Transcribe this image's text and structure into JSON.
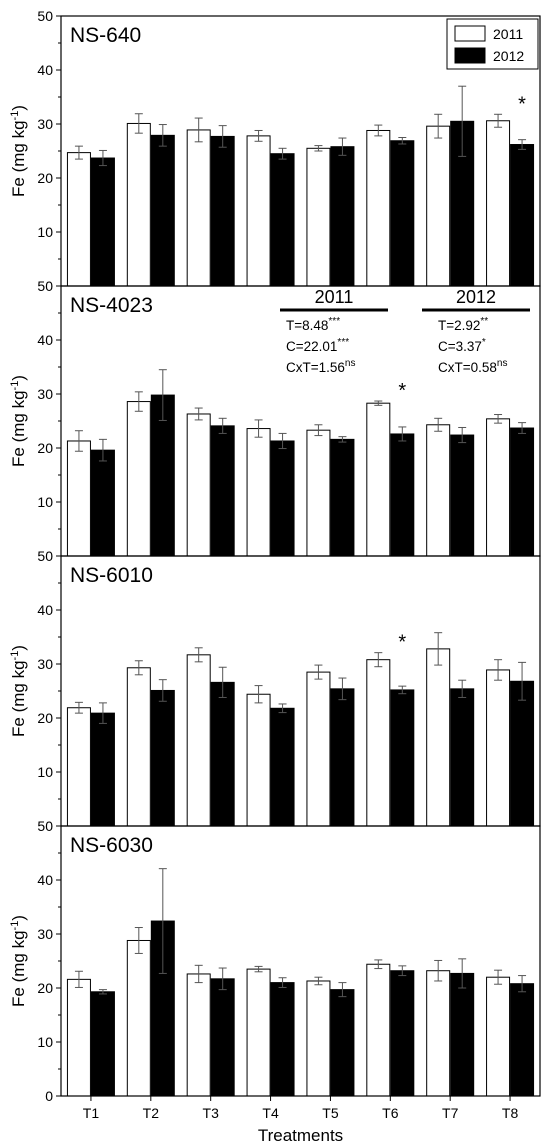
{
  "chart_data": {
    "type": "bar",
    "categories": [
      "T1",
      "T2",
      "T3",
      "T4",
      "T5",
      "T6",
      "T7",
      "T8"
    ],
    "xlabel": "Treatments",
    "ylabel": "Fe (mg kg",
    "ylabel_superscript": "-1",
    "ylabel_close": ")",
    "ylim": [
      0,
      50
    ],
    "yticks": [
      0,
      10,
      20,
      30,
      40,
      50
    ],
    "legend": {
      "position": "top-right",
      "entries": [
        {
          "label": "2011",
          "color": "#ffffff"
        },
        {
          "label": "2012",
          "color": "#000000"
        }
      ]
    },
    "panels": [
      {
        "title": "NS-640",
        "series": [
          {
            "name": "2011",
            "values": [
              24.7,
              30.1,
              28.9,
              27.8,
              25.5,
              28.8,
              29.6,
              30.6
            ],
            "errors": [
              1.2,
              1.8,
              2.2,
              1.0,
              0.5,
              1.0,
              2.2,
              1.2
            ]
          },
          {
            "name": "2012",
            "values": [
              23.7,
              27.9,
              27.7,
              24.5,
              25.8,
              26.9,
              30.5,
              26.2
            ],
            "errors": [
              1.4,
              2.0,
              2.0,
              1.0,
              1.6,
              0.6,
              6.5,
              0.9
            ]
          }
        ],
        "markers": [
          {
            "category": "T8",
            "text": "*"
          }
        ]
      },
      {
        "title": "NS-4023",
        "series": [
          {
            "name": "2011",
            "values": [
              21.3,
              28.6,
              26.3,
              23.6,
              23.3,
              28.3,
              24.3,
              25.4
            ],
            "errors": [
              1.9,
              1.8,
              1.1,
              1.6,
              1.0,
              0.4,
              1.2,
              0.8
            ]
          },
          {
            "name": "2012",
            "values": [
              19.6,
              29.8,
              24.1,
              21.3,
              21.6,
              22.6,
              22.4,
              23.7
            ],
            "errors": [
              2.0,
              4.7,
              1.4,
              1.4,
              0.5,
              1.3,
              1.4,
              1.0
            ]
          }
        ],
        "markers": [
          {
            "category": "T6",
            "text": "*"
          }
        ],
        "annotations": [
          {
            "heading": "2011",
            "lines": [
              {
                "text": "T=8.48",
                "sup": "***"
              },
              {
                "text": "C=22.01",
                "sup": "***"
              },
              {
                "text": "CxT=1.56",
                "sup": "ns"
              }
            ]
          },
          {
            "heading": "2012",
            "lines": [
              {
                "text": "T=2.92",
                "sup": "**"
              },
              {
                "text": "C=3.37",
                "sup": "*"
              },
              {
                "text": "CxT=0.58",
                "sup": "ns"
              }
            ]
          }
        ]
      },
      {
        "title": "NS-6010",
        "series": [
          {
            "name": "2011",
            "values": [
              21.9,
              29.3,
              31.7,
              24.4,
              28.5,
              30.8,
              32.8,
              28.9
            ],
            "errors": [
              1.0,
              1.3,
              1.3,
              1.6,
              1.3,
              1.3,
              3.0,
              1.9
            ]
          },
          {
            "name": "2012",
            "values": [
              20.9,
              25.1,
              26.6,
              21.8,
              25.4,
              25.2,
              25.4,
              26.8
            ],
            "errors": [
              1.9,
              2.0,
              2.8,
              0.8,
              2.0,
              0.7,
              1.6,
              3.5
            ]
          }
        ],
        "markers": [
          {
            "category": "T6",
            "text": "*"
          }
        ]
      },
      {
        "title": "NS-6030",
        "series": [
          {
            "name": "2011",
            "values": [
              21.6,
              28.8,
              22.6,
              23.5,
              21.3,
              24.4,
              23.2,
              22.0
            ],
            "errors": [
              1.5,
              2.4,
              1.6,
              0.5,
              0.7,
              0.8,
              1.9,
              1.3
            ]
          },
          {
            "name": "2012",
            "values": [
              19.3,
              32.4,
              21.7,
              21.0,
              19.7,
              23.2,
              22.7,
              20.8
            ],
            "errors": [
              0.4,
              9.7,
              2.0,
              0.9,
              1.3,
              0.9,
              2.7,
              1.5
            ]
          }
        ],
        "markers": []
      }
    ]
  }
}
